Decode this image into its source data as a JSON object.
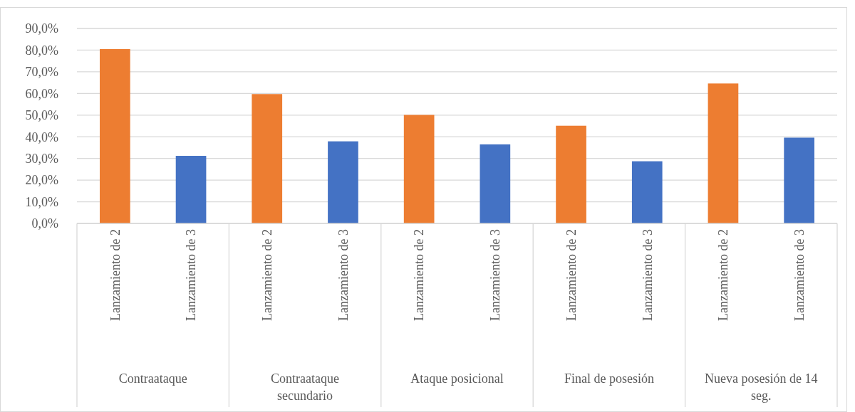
{
  "chart_data": {
    "type": "bar",
    "categories": [
      "Lanzamiento de 2",
      "Lanzamiento de 3",
      "Lanzamiento de 2",
      "Lanzamiento de 3",
      "Lanzamiento de 2",
      "Lanzamiento de 3",
      "Lanzamiento de 2",
      "Lanzamiento de 3",
      "Lanzamiento de 2",
      "Lanzamiento de 3"
    ],
    "values": [
      80.5,
      31.2,
      59.7,
      37.9,
      50.1,
      36.5,
      45.1,
      28.7,
      64.6,
      39.6
    ],
    "colors": [
      "#ed7d31",
      "#4472c4",
      "#ed7d31",
      "#4472c4",
      "#ed7d31",
      "#4472c4",
      "#ed7d31",
      "#4472c4",
      "#ed7d31",
      "#4472c4"
    ],
    "ylim": [
      0,
      90
    ],
    "yticks": [
      {
        "value": 0,
        "label": "0,0%"
      },
      {
        "value": 10,
        "label": "10,0%"
      },
      {
        "value": 20,
        "label": "20,0%"
      },
      {
        "value": 30,
        "label": "30,0%"
      },
      {
        "value": 40,
        "label": "40,0%"
      },
      {
        "value": 50,
        "label": "50,0%"
      },
      {
        "value": 60,
        "label": "60,0%"
      },
      {
        "value": 70,
        "label": "70,0%"
      },
      {
        "value": 80,
        "label": "80,0%"
      },
      {
        "value": 90,
        "label": "90,0%"
      }
    ],
    "grid": "y",
    "annotations": [
      "Contraataque",
      "Contraataque secundario",
      "Ataque posicional",
      "Final de posesión",
      "Nueva posesión de 14 seg."
    ]
  }
}
